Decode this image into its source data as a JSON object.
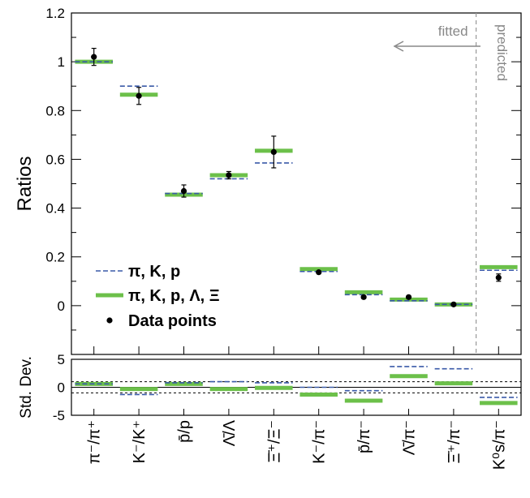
{
  "chart_data": [
    {
      "type": "scatter",
      "ylabel": "Ratios",
      "ylim": [
        -0.2,
        1.2
      ],
      "yticks": [
        "-0.2",
        "0",
        "0.2",
        "0.4",
        "0.6",
        "0.8",
        "1",
        "1.2"
      ],
      "ytick_values": [
        -0.2,
        0,
        0.2,
        0.4,
        0.6,
        0.8,
        1,
        1.2
      ],
      "categories": [
        "π⁻/π⁺",
        "K⁻/K⁺",
        "p̄/p",
        "Λ̄/Λ",
        "Ξ̄⁺/Ξ⁻",
        "K⁻/π⁻",
        "p̄/π⁻",
        "Λ̄/π⁻",
        "Ξ̄⁺/π⁻",
        "K⁰s/π⁻"
      ],
      "annotations": {
        "fitted": "fitted",
        "predicted": "predicted"
      },
      "legend": {
        "position": "bottom-left",
        "entries": [
          "π, K, p",
          "π, K, p, Λ, Ξ",
          "Data points"
        ]
      },
      "series": [
        {
          "name": "π, K, p",
          "style": "dashed",
          "color": "#3a5aa8",
          "values": [
            1.0,
            0.9,
            0.46,
            0.52,
            0.585,
            0.14,
            0.045,
            0.02,
            0.005,
            0.145
          ]
        },
        {
          "name": "π, K, p, Λ, Ξ",
          "style": "solid",
          "color": "#6cc04a",
          "values": [
            1.0,
            0.865,
            0.455,
            0.535,
            0.635,
            0.15,
            0.055,
            0.025,
            0.005,
            0.158
          ]
        },
        {
          "name": "Data points",
          "style": "marker",
          "color": "#000000",
          "values": [
            1.02,
            0.86,
            0.47,
            0.535,
            0.63,
            0.137,
            0.035,
            0.035,
            0.005,
            0.115
          ],
          "errors": [
            0.035,
            0.035,
            0.025,
            0.015,
            0.065,
            0.005,
            0.005,
            0.005,
            0.005,
            0.015
          ]
        }
      ]
    },
    {
      "type": "bar",
      "ylabel": "Std. Dev.",
      "ylim": [
        -5,
        5
      ],
      "yticks": [
        "-5",
        "0",
        "5"
      ],
      "ytick_values": [
        -5,
        0,
        5
      ],
      "reference_lines": [
        1,
        -1
      ],
      "categories": [
        "π⁻/π⁺",
        "K⁻/K⁺",
        "p̄/p",
        "Λ̄/Λ",
        "Ξ̄⁺/Ξ⁻",
        "K⁻/π⁻",
        "p̄/π⁻",
        "Λ̄/π⁻",
        "Ξ̄⁺/π⁻",
        "K⁰s/π⁻"
      ],
      "series": [
        {
          "name": "π, K, p",
          "style": "dashed",
          "color": "#3a5aa8",
          "values": [
            0.6,
            -1.3,
            0.8,
            1.0,
            0.8,
            0.0,
            -0.6,
            3.7,
            3.3,
            -1.8
          ]
        },
        {
          "name": "π, K, p, Λ, Ξ",
          "style": "solid",
          "color": "#6cc04a",
          "values": [
            0.6,
            -0.3,
            0.6,
            -0.3,
            -0.1,
            -1.3,
            -2.4,
            2.0,
            0.7,
            -2.8
          ]
        }
      ]
    }
  ]
}
